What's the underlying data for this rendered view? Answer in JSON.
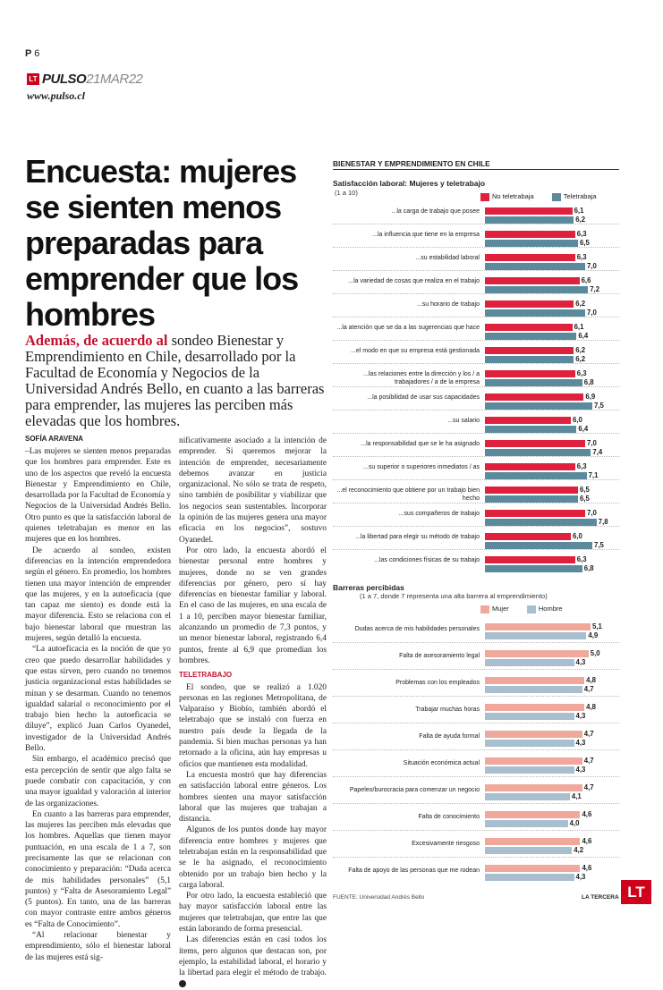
{
  "page": {
    "label": "P",
    "number": "6"
  },
  "masthead": {
    "badge": "LT",
    "name": "PULSO",
    "date": "21MAR22",
    "url": "www.pulso.cl"
  },
  "article": {
    "headline": "Encuesta: mujeres se sienten menos preparadas para emprender que los hombres",
    "lede_lead": "Además, de acuerdo al",
    "lede_rest": " sondeo Bienestar y Emprendimiento en Chile, desarrollado por la Facultad de Economía y Negocios de la Universidad Andrés Bello, en cuanto a las barreras para emprender, las mujeres las perciben más elevadas que los hombres.",
    "byline": "SOFÍA ARAVENA",
    "col1": [
      "–Las mujeres se sienten menos preparadas que los hombres para emprender. Este es uno de los aspectos que reveló la encuesta Bienestar y Emprendimiento en Chile, desarrollada por la Facultad de Economía y Negocios de la Universidad Andrés Bello. Otro punto es que la satisfacción laboral de quienes teletrabajan es menor en las mujeres que en los hombres.",
      "De acuerdo al sondeo, existen diferencias en la intención emprendedora según el género. En promedio, los hombres tienen una mayor intención de emprender que las mujeres, y en la autoeficacia (que tan capaz me siento) es donde está la mayor diferencia. Esto se relaciona con el bajo bienestar laboral que muestran las mujeres, según detalló la encuesta.",
      "“La autoeficacia es la noción de que yo creo que puedo desarrollar habilidades y que estas sirven, pero cuando no tenemos justicia organizacional estas habilidades se minan y se desarman. Cuando no tenemos igualdad salarial o reconocimiento por el trabajo bien hecho la autoeficacia se diluye”, explicó Juan Carlos Oyanedel, investigador de la Universidad Andrés Bello.",
      "Sin embargo, el académico precisó que esta percepción de sentir que algo falta se puede combatir con capacitación, y con una mayor igualdad y valoración al interior de las organizaciones.",
      "En cuanto a las barreras para emprender, las mujeres las perciben más elevadas que los hombres. Aquellas que tienen mayor puntuación, en una escala de 1 a 7, son precisamente las que se relacionan con conocimiento y preparación: “Duda acerca de mis habilidades personales” (5,1 puntos) y “Falta de Asesoramiento Legal” (5 puntos). En tanto, una de las barreras con mayor contraste entre ambos géneros es “Falta de Conocimiento”.",
      "“Al relacionar bienestar y emprendimiento, sólo el bienestar laboral de las mujeres está sig-"
    ],
    "col2_a": [
      "nificativamente asociado a la intención de emprender. Si queremos mejorar la intención de emprender, necesariamente debemos avanzar en justicia organizacional. No sólo se trata de respeto, sino también de posibilitar y viabilizar que los negocios sean sustentables. Incorporar la opinión de las mujeres genera una mayor eficacia en los negocios”, sostuvo Oyanedel.",
      "Por otro lado, la encuesta abordó el bienestar personal entre hombres y mujeres, donde no se ven grandes diferencias por género, pero sí hay diferencias en bienestar familiar y laboral. En el caso de las mujeres, en una escala de 1 a 10, perciben mayor bienestar familiar, alcanzando un promedio de 7,3 puntos, y un menor bienestar laboral, registrando 6,4 puntos, frente al 6,9 que promedian los hombres."
    ],
    "subhead": "TELETRABAJO",
    "col2_b": [
      "El sondeo, que se realizó a 1.020 personas en las regiones Metropolitana, de Valparaíso y Biobío, también abordó el teletrabajo que se instaló con fuerza en nuestro país desde la llegada de la pandemia. Si bien muchas personas ya han retornado a la oficina, aún hay empresas u oficios que mantienen esta modalidad.",
      "La encuesta mostró que hay diferencias en satisfacción laboral entre géneros. Los hombres sienten una mayor satisfacción laboral que las mujeres que trabajan a distancia.",
      "Algunos de los puntos donde hay mayor diferencia entre hombres y mujeres que teletrabajan están en la responsabilidad que se le ha asignado, el reconocimiento obtenido por un trabajo bien hecho y la carga laboral.",
      "Por otro lado, la encuesta estableció que hay mayor satisfacción laboral entre las mujeres que teletrabajan, que entre las que están laborando de forma presencial.",
      "Las diferencias están en casi todos los ítems, pero algunos que destacan son, por ejemplo, la estabilidad laboral, el horario y la libertad para elegir el método de trabajo."
    ],
    "endmark": "P"
  },
  "graphic": {
    "header": "BIENESTAR Y EMPRENDIMIENTO EN CHILE",
    "source": "FUENTE: Universidad Andrés Bello",
    "brand": "LA TERCERA",
    "lt_badge": "LT"
  },
  "colors": {
    "no_tele": "#e0213d",
    "tele": "#5a8a9c",
    "mujer": "#f0a89c",
    "hombre": "#a7bfcf"
  },
  "chart_data": [
    {
      "type": "bar",
      "title": "Satisfacción laboral: Mujeres y teletrabajo",
      "subtitle": "(1 a 10)",
      "categories": [
        "...la carga de trabajo que posee",
        "...la influencia que tiene en la empresa",
        "...su estabilidad laboral",
        "...la variedad de cosas que realiza en el trabajo",
        "...su horario de trabajo",
        "...la atención que se da a las sugerencias que hace",
        "...el modo en que su empresa está gestionada",
        "...las relaciones entre la dirección y los / a trabajadores / a de la empresa",
        "...la posibilidad de usar sus capacidades",
        "...su salario",
        "...la responsabilidad que se le ha asignado",
        "...su superior o superiores inmediatos / as",
        "...el reconocimiento que obtiene por un trabajo bien hecho",
        "...sus compañeros de trabajo",
        "...la libertad para elegir su método de trabajo",
        "...las condiciones físicas de su trabajo"
      ],
      "series": [
        {
          "name": "No teletrabaja",
          "values": [
            6.1,
            6.3,
            6.3,
            6.6,
            6.2,
            6.1,
            6.2,
            6.3,
            6.9,
            6.0,
            7.0,
            6.3,
            6.5,
            7.0,
            6.0,
            6.3
          ]
        },
        {
          "name": "Teletrabaja",
          "values": [
            6.2,
            6.5,
            7.0,
            7.2,
            7.0,
            6.4,
            6.2,
            6.8,
            7.5,
            6.4,
            7.4,
            7.1,
            6.5,
            7.8,
            7.5,
            6.8
          ]
        }
      ],
      "value_labels": {
        "No teletrabaja": [
          "6,1",
          "6,3",
          "6,3",
          "6,6",
          "6,2",
          "6,1",
          "6,2",
          "6,3",
          "6,9",
          "6,0",
          "7,0",
          "6,3",
          "6,5",
          "7,0",
          "6,0",
          "6,3"
        ],
        "Teletrabaja": [
          "6,2",
          "6,5",
          "7,0",
          "7,2",
          "7,0",
          "6,4",
          "6,2",
          "6,8",
          "7,5",
          "6,4",
          "7,4",
          "7,1",
          "6,5",
          "7,8",
          "7,5",
          "6,8"
        ]
      },
      "xlim": [
        0,
        8
      ]
    },
    {
      "type": "bar",
      "title": "Barreras percibidas",
      "subtitle": "(1 a 7, donde 7 representa una alta barrera al emprendimiento)",
      "categories": [
        "Dudas acerca de mis habilidades personales",
        "Falta de asesoramiento legal",
        "Problemas con los empleados",
        "Trabajar muchas horas",
        "Falta de ayuda formal",
        "Situación económica actual",
        "Papeleo/burocracia para comenzar un negocio",
        "Falta de conocimiento",
        "Excesivamente riesgoso",
        "Falta de apoyo de las personas que me rodean"
      ],
      "series": [
        {
          "name": "Mujer",
          "values": [
            5.1,
            5.0,
            4.8,
            4.8,
            4.7,
            4.7,
            4.7,
            4.6,
            4.6,
            4.6
          ]
        },
        {
          "name": "Hombre",
          "values": [
            4.9,
            4.3,
            4.7,
            4.3,
            4.3,
            4.3,
            4.1,
            4.0,
            4.2,
            4.3
          ]
        }
      ],
      "value_labels": {
        "Mujer": [
          "5,1",
          "5,0",
          "4,8",
          "4,8",
          "4,7",
          "4,7",
          "4,7",
          "4,6",
          "4,6",
          "4,6"
        ],
        "Hombre": [
          "4,9",
          "4,3",
          "4,7",
          "4,3",
          "4,3",
          "4,3",
          "4,1",
          "4,0",
          "4,2",
          "4,3"
        ]
      },
      "xlim": [
        0,
        5.4
      ]
    }
  ]
}
